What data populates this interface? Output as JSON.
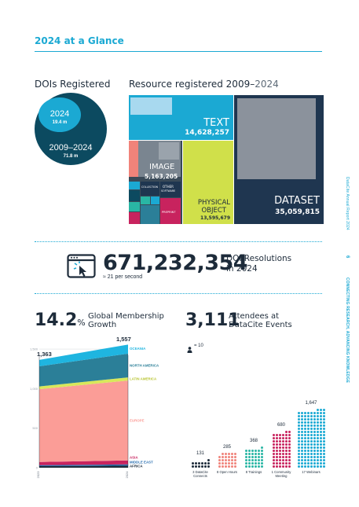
{
  "page": {
    "title": "2024 at a Glance",
    "side_report": "DataCite Annual Report 2024",
    "side_page": "6",
    "side_tagline": "CONNECTING RESEARCH, ADVANCING KNOWLEDGE"
  },
  "dois": {
    "heading": "DOIs Registered",
    "year_label": "2024",
    "year_value": "19.4 m",
    "range_label": "2009–2024",
    "range_value": "71.8 m"
  },
  "resources": {
    "heading_a": "Resource registered 2009–",
    "heading_b": "2024",
    "text_label": "TEXT",
    "text_value": "14,628,257",
    "image_label": "IMAGE",
    "image_value": "5,163,205",
    "physical_label_1": "PHYSICAL",
    "physical_label_2": "OBJECT",
    "physical_value": "13,595,679",
    "dataset_label": "DATASET",
    "dataset_value": "35,059,815",
    "small_labels": [
      "COLLECTION",
      "OTHER",
      "PREPRINT",
      "SOFTWARE"
    ]
  },
  "resolutions": {
    "value": "671,232,354",
    "label_1": "DOI Resolutions",
    "label_2": "in 2024",
    "rate": "≈ 21 per second",
    "icon": "cursor-click-browser-icon"
  },
  "membership": {
    "pct": "14.2",
    "pct_sign": "%",
    "label_1": "Global Membership",
    "label_2": "Growth",
    "start_total": "1,363",
    "end_total": "1,557",
    "x_start": "2023",
    "x_end": "2024"
  },
  "events": {
    "value": "3,111",
    "label_1": "Attendees at",
    "label_2": "DataCite Events",
    "legend": "= 10",
    "bars": [
      {
        "value": "131",
        "label_1": "3 DataCite",
        "label_2": "Connects",
        "color": "#1d2b3a"
      },
      {
        "value": "285",
        "label_1": "8 Open Hours",
        "label_2": "",
        "color": "#f0837a"
      },
      {
        "value": "368",
        "label_1": "8 Trainings",
        "label_2": "",
        "color": "#29b6a4"
      },
      {
        "value": "680",
        "label_1": "1 Community",
        "label_2": "Meeting",
        "color": "#c8235e"
      },
      {
        "value": "1,647",
        "label_1": "17 Webinars",
        "label_2": "",
        "color": "#1ba9d3"
      }
    ]
  },
  "chart_data": {
    "type": "area",
    "x": [
      "2023",
      "2024"
    ],
    "yticks": [
      "0",
      "500",
      "1,000",
      "1,500"
    ],
    "ylim": [
      0,
      1600
    ],
    "series": [
      {
        "name": "AFRICA",
        "values": [
          20,
          26
        ],
        "color": "#1d2b3a"
      },
      {
        "name": "MIDDLE EAST",
        "values": [
          12,
          16
        ],
        "color": "#2a6fb0"
      },
      {
        "name": "ASIA",
        "values": [
          40,
          50
        ],
        "color": "#c8235e"
      },
      {
        "name": "EUROPE",
        "values": [
          920,
          1010
        ],
        "color": "#fb9d97"
      },
      {
        "name": "LATIN AMERICA",
        "values": [
          35,
          40
        ],
        "color": "#d8e85a"
      },
      {
        "name": "NORTH AMERICA",
        "values": [
          255,
          300
        ],
        "color": "#2b7f98"
      },
      {
        "name": "OCEANIA",
        "values": [
          81,
          115
        ],
        "color": "#1fb5e0"
      }
    ]
  }
}
